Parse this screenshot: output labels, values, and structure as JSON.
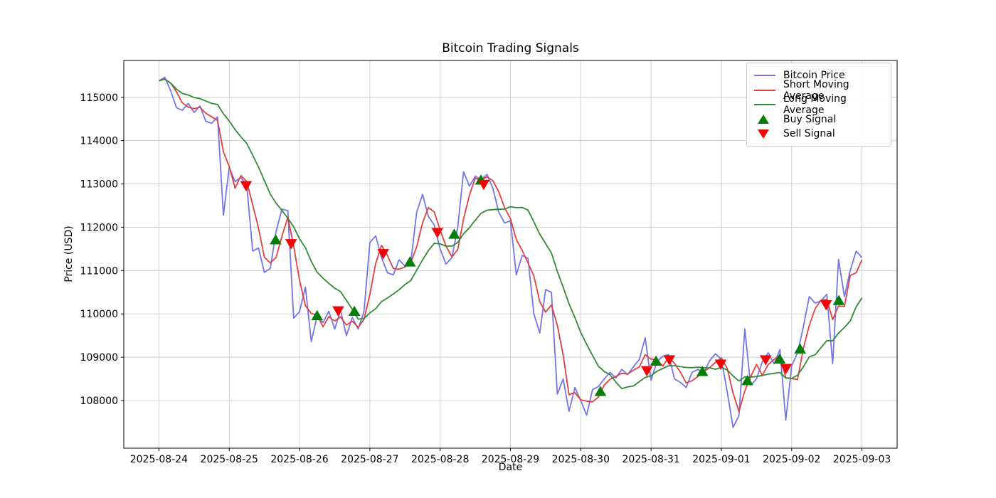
{
  "chart_data": {
    "type": "line",
    "title": "Bitcoin Trading Signals",
    "xlabel": "Date",
    "ylabel": "Price (USD)",
    "grid": true,
    "legend_position": "upper right",
    "x_unit": "days since 2025-08-24 00:00",
    "xlim": [
      -0.5,
      10.5
    ],
    "ylim": [
      106900,
      115850
    ],
    "x_tick_days": [
      0,
      1,
      2,
      3,
      4,
      5,
      6,
      7,
      8,
      9,
      10
    ],
    "x_tick_labels": [
      "2025-08-24",
      "2025-08-25",
      "2025-08-26",
      "2025-08-27",
      "2025-08-28",
      "2025-08-29",
      "2025-08-30",
      "2025-08-31",
      "2025-09-01",
      "2025-09-02",
      "2025-09-03"
    ],
    "y_ticks": [
      108000,
      109000,
      110000,
      111000,
      112000,
      113000,
      114000,
      115000
    ],
    "y_tick_labels": [
      "108000",
      "109000",
      "110000",
      "111000",
      "112000",
      "113000",
      "114000",
      "115000"
    ],
    "colors": {
      "price": "#7375ea",
      "short_ma": "#e04040",
      "long_ma": "#2f8b35",
      "buy": "#067d06",
      "sell": "#f00505",
      "grid": "#cccccc",
      "axis": "#000000"
    },
    "sample_start_day": 0,
    "sample_step_days": 0.0833333,
    "series": [
      {
        "name": "Bitcoin Price",
        "role": "price",
        "values": [
          115380,
          115460,
          115150,
          114760,
          114700,
          114860,
          114650,
          114800,
          114450,
          114400,
          114550,
          112280,
          113380,
          113050,
          113150,
          112960,
          111450,
          111520,
          110960,
          111050,
          111900,
          112420,
          112380,
          109900,
          110050,
          110620,
          109360,
          109950,
          109800,
          110060,
          109650,
          110080,
          109500,
          109920,
          109650,
          110050,
          111650,
          111800,
          111300,
          110950,
          110900,
          111250,
          111100,
          111200,
          112350,
          112760,
          112250,
          112050,
          111500,
          111150,
          111300,
          112000,
          113280,
          112950,
          113180,
          113100,
          113220,
          112900,
          112350,
          112100,
          112150,
          110900,
          111350,
          111280,
          110000,
          109560,
          110560,
          110500,
          108150,
          108500,
          107750,
          108300,
          108000,
          107660,
          108250,
          108320,
          108500,
          108650,
          108520,
          108720,
          108600,
          108780,
          108950,
          109450,
          108470,
          108900,
          109020,
          109060,
          108500,
          108420,
          108300,
          108650,
          108720,
          108640,
          108920,
          109080,
          108950,
          108200,
          107380,
          107650,
          109650,
          108350,
          108500,
          108900,
          109100,
          108850,
          109180,
          107550,
          108800,
          109100,
          109700,
          110400,
          110250,
          110300,
          110450,
          108850,
          111260,
          110400,
          111000,
          111450,
          111300
        ]
      },
      {
        "name": "Short Moving Average",
        "role": "short_ma",
        "derived": "moving_average_of_price",
        "window_points": 3
      },
      {
        "name": "Long Moving Average",
        "role": "long_ma",
        "derived": "moving_average_of_price",
        "window_points": 12
      }
    ],
    "signals": {
      "buy": {
        "label": "Buy Signal",
        "marker": "triangle-up",
        "points": [
          {
            "d": 1.66,
            "price": 111700
          },
          {
            "d": 2.25,
            "price": 109950
          },
          {
            "d": 2.78,
            "price": 110050
          },
          {
            "d": 3.57,
            "price": 111190
          },
          {
            "d": 4.2,
            "price": 111830
          },
          {
            "d": 4.58,
            "price": 113080
          },
          {
            "d": 6.28,
            "price": 108200
          },
          {
            "d": 7.07,
            "price": 108900
          },
          {
            "d": 7.73,
            "price": 108660
          },
          {
            "d": 8.37,
            "price": 108450
          },
          {
            "d": 8.83,
            "price": 108950
          },
          {
            "d": 9.12,
            "price": 109180
          },
          {
            "d": 9.67,
            "price": 110300
          }
        ]
      },
      "sell": {
        "label": "Sell Signal",
        "marker": "triangle-down",
        "points": [
          {
            "d": 1.24,
            "price": 112970
          },
          {
            "d": 1.88,
            "price": 111630
          },
          {
            "d": 2.55,
            "price": 110080
          },
          {
            "d": 3.19,
            "price": 111400
          },
          {
            "d": 3.96,
            "price": 111890
          },
          {
            "d": 4.62,
            "price": 113000
          },
          {
            "d": 6.94,
            "price": 108700
          },
          {
            "d": 7.26,
            "price": 108950
          },
          {
            "d": 7.99,
            "price": 108850
          },
          {
            "d": 8.63,
            "price": 108950
          },
          {
            "d": 8.92,
            "price": 108750
          },
          {
            "d": 9.49,
            "price": 110220
          }
        ]
      }
    }
  }
}
